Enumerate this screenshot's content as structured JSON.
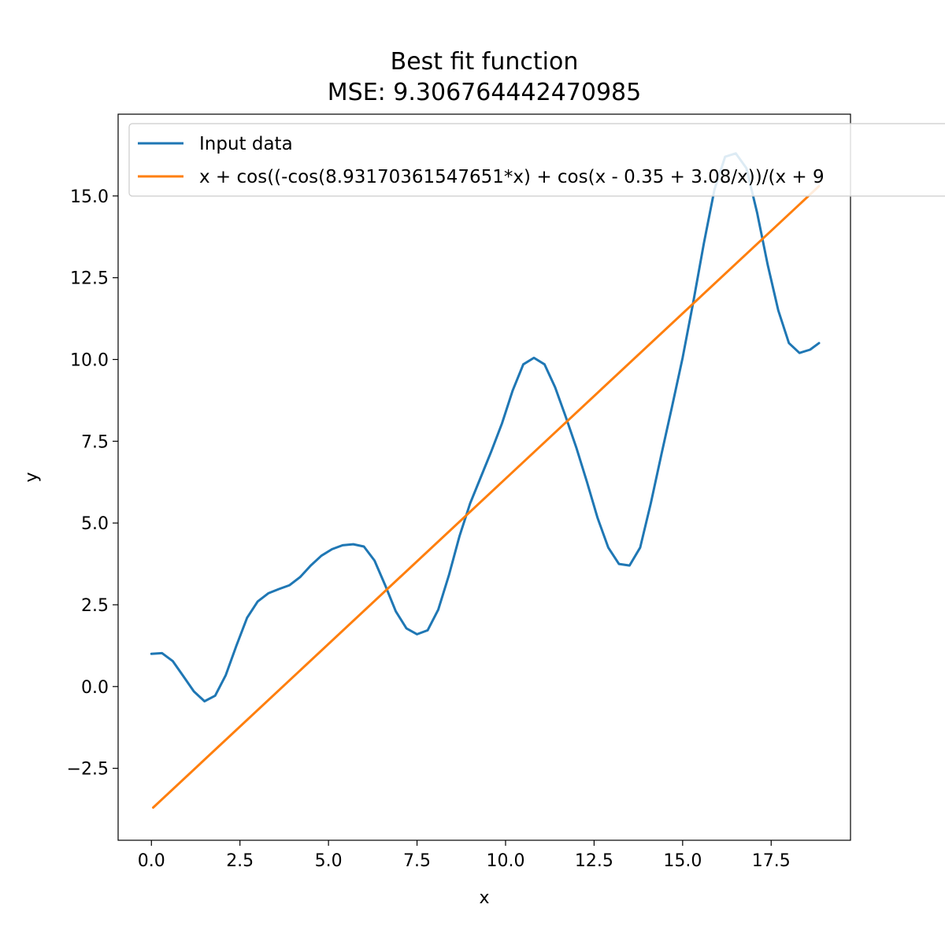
{
  "chart_data": {
    "type": "line",
    "title": "Best fit function",
    "subtitle": "MSE: 9.306764442470985",
    "xlabel": "x",
    "ylabel": "y",
    "xlim": [
      -0.94,
      19.74
    ],
    "ylim": [
      -4.7,
      17.5
    ],
    "xticks": [
      0.0,
      2.5,
      5.0,
      7.5,
      10.0,
      12.5,
      15.0,
      17.5
    ],
    "xtick_labels": [
      "0.0",
      "2.5",
      "5.0",
      "7.5",
      "10.0",
      "12.5",
      "15.0",
      "17.5"
    ],
    "yticks": [
      -2.5,
      0.0,
      2.5,
      5.0,
      7.5,
      10.0,
      12.5,
      15.0
    ],
    "ytick_labels": [
      "−2.5",
      "0.0",
      "2.5",
      "5.0",
      "7.5",
      "10.0",
      "12.5",
      "15.0"
    ],
    "grid": false,
    "legend_position": "top-left",
    "series": [
      {
        "name": "Input data",
        "color": "#1f77b4",
        "x": [
          0.0,
          0.3,
          0.6,
          0.9,
          1.2,
          1.5,
          1.8,
          2.1,
          2.4,
          2.7,
          3.0,
          3.3,
          3.6,
          3.9,
          4.2,
          4.5,
          4.8,
          5.1,
          5.4,
          5.7,
          6.0,
          6.3,
          6.6,
          6.9,
          7.2,
          7.5,
          7.8,
          8.1,
          8.4,
          8.7,
          9.0,
          9.3,
          9.6,
          9.9,
          10.2,
          10.5,
          10.8,
          11.1,
          11.4,
          11.7,
          12.0,
          12.3,
          12.6,
          12.9,
          13.2,
          13.5,
          13.8,
          14.1,
          14.4,
          14.7,
          15.0,
          15.3,
          15.6,
          15.9,
          16.2,
          16.5,
          16.8,
          17.1,
          17.4,
          17.7,
          18.0,
          18.3,
          18.6,
          18.85
        ],
        "values": [
          1.0,
          1.02,
          0.78,
          0.32,
          -0.15,
          -0.45,
          -0.28,
          0.35,
          1.25,
          2.1,
          2.6,
          2.85,
          2.98,
          3.1,
          3.35,
          3.7,
          4.0,
          4.2,
          4.32,
          4.35,
          4.28,
          3.85,
          3.1,
          2.3,
          1.78,
          1.6,
          1.72,
          2.35,
          3.4,
          4.6,
          5.6,
          6.4,
          7.2,
          8.05,
          9.05,
          9.85,
          10.05,
          9.85,
          9.15,
          8.25,
          7.3,
          6.25,
          5.15,
          4.25,
          3.75,
          3.7,
          4.25,
          5.6,
          7.1,
          8.55,
          10.05,
          11.75,
          13.55,
          15.2,
          16.2,
          16.3,
          15.85,
          14.5,
          12.9,
          11.5,
          10.5,
          10.2,
          10.3,
          10.5
        ]
      },
      {
        "name": "x + cos((-cos(8.93170361547651*x) + cos(x - 0.35 + 3.08/x))/(x + 9",
        "color": "#ff7f0e",
        "x": [
          0.05,
          18.85
        ],
        "values": [
          -3.7,
          15.3
        ]
      }
    ]
  }
}
